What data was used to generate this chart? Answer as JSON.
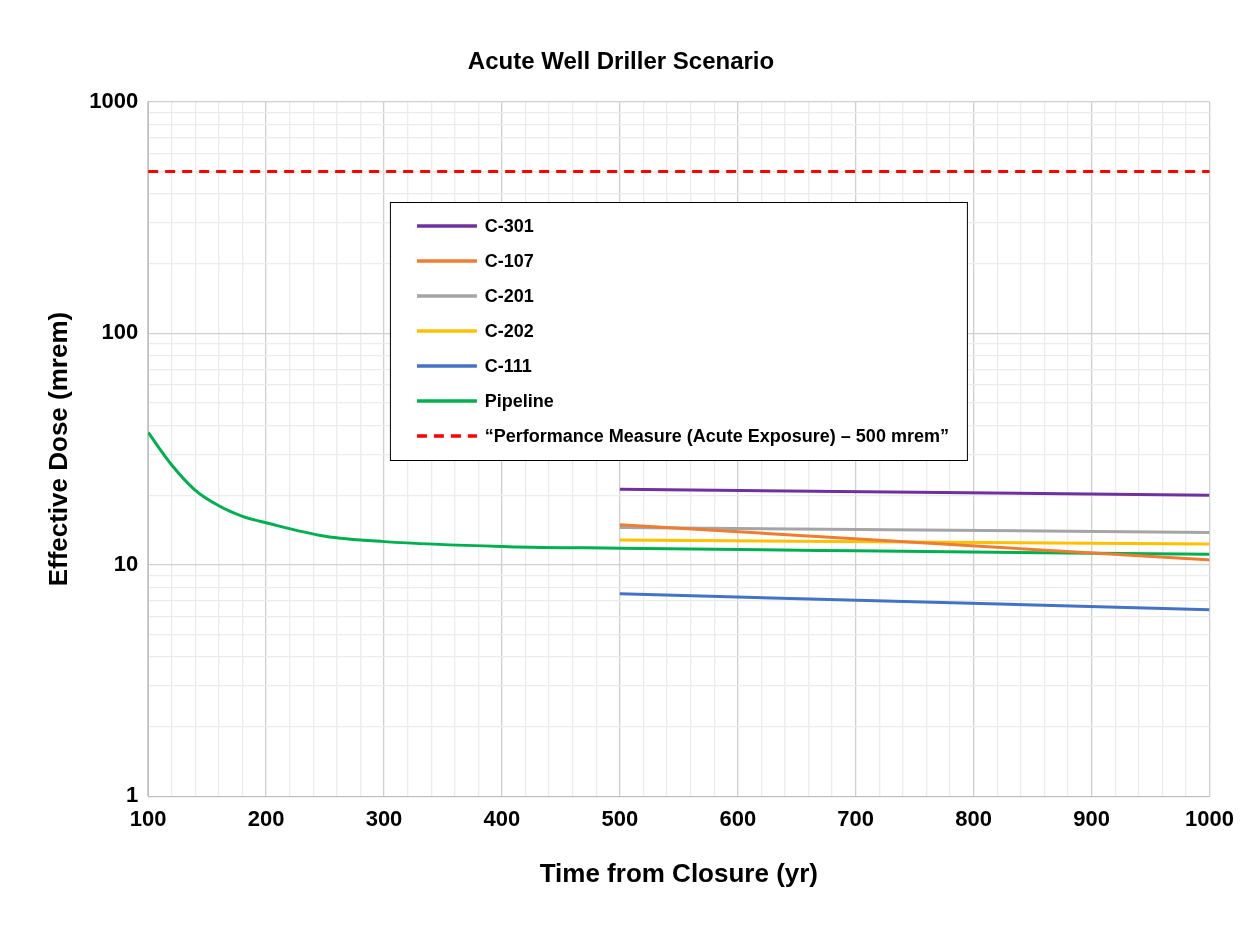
{
  "chart_data": {
    "type": "line",
    "title": "Acute Well Driller Scenario",
    "xlabel": "Time from Closure (yr)",
    "ylabel": "Effective Dose (mrem)",
    "log": "y",
    "grid": true,
    "legend": "top",
    "marker": "none",
    "line_style": "solid",
    "xlim": [
      100,
      1000
    ],
    "xticks": [
      100,
      {
        "value": 120,
        "label": null
      },
      {
        "value": 140,
        "label": null
      },
      {
        "value": 160,
        "label": null
      },
      {
        "value": 180,
        "label": null
      },
      200,
      {
        "value": 220,
        "label": null
      },
      {
        "value": 240,
        "label": null
      },
      {
        "value": 260,
        "label": null
      },
      {
        "value": 280,
        "label": null
      },
      300,
      {
        "value": 320,
        "label": null
      },
      {
        "value": 340,
        "label": null
      },
      {
        "value": 360,
        "label": null
      },
      {
        "value": 380,
        "label": null
      },
      400,
      {
        "value": 420,
        "label": null
      },
      {
        "value": 440,
        "label": null
      },
      {
        "value": 460,
        "label": null
      },
      {
        "value": 480,
        "label": null
      },
      500,
      {
        "value": 520,
        "label": null
      },
      {
        "value": 540,
        "label": null
      },
      {
        "value": 560,
        "label": null
      },
      {
        "value": 580,
        "label": null
      },
      600,
      {
        "value": 620,
        "label": null
      },
      {
        "value": 640,
        "label": null
      },
      {
        "value": 660,
        "label": null
      },
      {
        "value": 680,
        "label": null
      },
      700,
      {
        "value": 720,
        "label": null
      },
      {
        "value": 740,
        "label": null
      },
      {
        "value": 760,
        "label": null
      },
      {
        "value": 780,
        "label": null
      },
      800,
      {
        "value": 820,
        "label": null
      },
      {
        "value": 840,
        "label": null
      },
      {
        "value": 860,
        "label": null
      },
      {
        "value": 880,
        "label": null
      },
      900,
      {
        "value": 920,
        "label": null
      },
      {
        "value": 940,
        "label": null
      },
      {
        "value": 960,
        "label": null
      },
      {
        "value": 980,
        "label": null
      },
      1000
    ],
    "ylim": [
      1,
      1000
    ],
    "yticks": [
      1,
      {
        "value": 2,
        "label": null
      },
      {
        "value": 3,
        "label": null
      },
      {
        "value": 4,
        "label": null
      },
      {
        "value": 5,
        "label": null
      },
      {
        "value": 6,
        "label": null
      },
      {
        "value": 7,
        "label": null
      },
      {
        "value": 8,
        "label": null
      },
      {
        "value": 9,
        "label": null
      },
      10,
      {
        "value": 20,
        "label": null
      },
      {
        "value": 30,
        "label": null
      },
      {
        "value": 40,
        "label": null
      },
      {
        "value": 50,
        "label": null
      },
      {
        "value": 60,
        "label": null
      },
      {
        "value": 70,
        "label": null
      },
      {
        "value": 80,
        "label": null
      },
      {
        "value": 90,
        "label": null
      },
      100,
      {
        "value": 200,
        "label": null
      },
      {
        "value": 300,
        "label": null
      },
      {
        "value": 400,
        "label": null
      },
      {
        "value": 500,
        "label": null
      },
      {
        "value": 600,
        "label": null
      },
      {
        "value": 700,
        "label": null
      },
      {
        "value": 800,
        "label": null
      },
      {
        "value": 900,
        "label": null
      },
      1000
    ],
    "series": [
      {
        "name": "C-301",
        "color": "#7030a0",
        "x": [
          500,
          1000
        ],
        "values": [
          21.2,
          20.0
        ]
      },
      {
        "name": "C-107",
        "color": "#ed7d31",
        "x": [
          500,
          1000
        ],
        "values": [
          14.9,
          10.5
        ]
      },
      {
        "name": "C-201",
        "color": "#a5a5a5",
        "x": [
          500,
          1000
        ],
        "values": [
          14.5,
          13.8
        ]
      },
      {
        "name": "C-202",
        "color": "#ffc000",
        "x": [
          500,
          1000
        ],
        "values": [
          12.8,
          12.3
        ]
      },
      {
        "name": "C-111",
        "color": "#4472c4",
        "x": [
          500,
          1000
        ],
        "values": [
          7.5,
          6.4
        ]
      },
      {
        "name": "Pipeline",
        "color": "#00b050",
        "x": [
          100,
          120,
          140,
          160,
          180,
          200,
          250,
          300,
          400,
          500,
          700,
          1000
        ],
        "values": [
          37.3,
          27,
          21,
          18,
          16.2,
          15.2,
          13.3,
          12.6,
          12.0,
          11.8,
          11.5,
          11.1
        ]
      }
    ],
    "ref_lines": [
      {
        "axis": "y",
        "value": 500,
        "label": "“Performance Measure (Acute Exposure) – 500 mrem”",
        "color": "#ff0000",
        "line_style": "dashed"
      }
    ]
  }
}
